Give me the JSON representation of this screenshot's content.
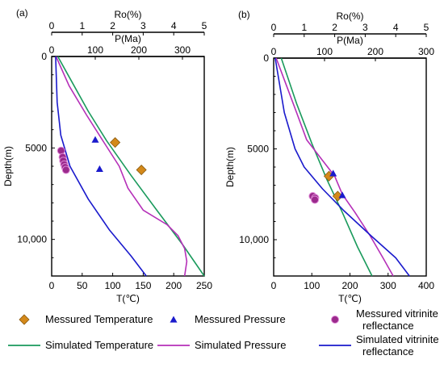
{
  "chart_data": [
    {
      "type": "line",
      "panel_label": "(a)",
      "axes": {
        "temperature": {
          "label": "T(℃)",
          "range": [
            0,
            250
          ],
          "ticks": [
            0,
            50,
            100,
            150,
            200,
            250
          ],
          "position": "bottom"
        },
        "pressure": {
          "label": "P(Ma)",
          "range": [
            0,
            350
          ],
          "ticks": [
            0,
            100,
            200,
            300
          ],
          "position": "top"
        },
        "ro": {
          "label": "Ro(%)",
          "range": [
            0,
            5
          ],
          "ticks": [
            0,
            1,
            2,
            3,
            4,
            5
          ],
          "position": "top"
        },
        "depth": {
          "label": "Depth(m)",
          "range": [
            0,
            12000
          ],
          "ticks": [
            0,
            5000,
            10000
          ],
          "tick_labels": [
            "0",
            "5000",
            "10,000"
          ],
          "reversed": true,
          "position": "left"
        }
      },
      "series": [
        {
          "name": "Simulated Temperature",
          "axis": "temperature",
          "color": "#1a9a5c",
          "style": "line",
          "points": [
            [
              10,
              0
            ],
            [
              30,
              1200
            ],
            [
              60,
              3000
            ],
            [
              90,
              4600
            ],
            [
              130,
              6500
            ],
            [
              170,
              8300
            ],
            [
              215,
              10300
            ],
            [
              250,
              12000
            ]
          ]
        },
        {
          "name": "Simulated Pressure",
          "axis": "pressure",
          "color": "#b52fb8",
          "style": "line",
          "points": [
            [
              10,
              0
            ],
            [
              40,
              1600
            ],
            [
              80,
              3200
            ],
            [
              120,
              4700
            ],
            [
              155,
              6000
            ],
            [
              175,
              7200
            ],
            [
              210,
              8400
            ],
            [
              265,
              9200
            ],
            [
              290,
              9800
            ],
            [
              305,
              10500
            ],
            [
              310,
              11200
            ],
            [
              305,
              12000
            ]
          ]
        },
        {
          "name": "Simulated vitrinite reflectance",
          "axis": "ro",
          "color": "#1a1acc",
          "style": "line",
          "points": [
            [
              0.13,
              0
            ],
            [
              0.18,
              2500
            ],
            [
              0.3,
              4300
            ],
            [
              0.6,
              6000
            ],
            [
              1.2,
              7800
            ],
            [
              1.9,
              9500
            ],
            [
              2.6,
              10900
            ],
            [
              3.1,
              12000
            ]
          ]
        },
        {
          "name": "Messured Temperature",
          "axis": "temperature",
          "color": "#d4891a",
          "style": "diamond",
          "points": [
            [
              104,
              4700
            ],
            [
              147,
              6200
            ]
          ]
        },
        {
          "name": "Messured Pressure",
          "axis": "pressure",
          "color": "#1a1acc",
          "style": "triangle",
          "points": [
            [
              100,
              4550
            ],
            [
              110,
              6150
            ]
          ]
        },
        {
          "name": "Messured vitrinite reflectance",
          "axis": "ro",
          "color": "#9b2a8c",
          "style": "circle",
          "points": [
            [
              0.31,
              5150
            ],
            [
              0.36,
              5500
            ],
            [
              0.38,
              5700
            ],
            [
              0.41,
              5900
            ],
            [
              0.44,
              6050
            ],
            [
              0.47,
              6200
            ]
          ]
        }
      ]
    },
    {
      "type": "line",
      "panel_label": "(b)",
      "axes": {
        "temperature": {
          "label": "T(℃)",
          "range": [
            0,
            400
          ],
          "ticks": [
            0,
            100,
            200,
            300,
            400
          ],
          "position": "bottom"
        },
        "pressure": {
          "label": "P(Ma)",
          "range": [
            0,
            300
          ],
          "ticks": [
            0,
            100,
            200,
            300
          ],
          "position": "top"
        },
        "ro": {
          "label": "Ro(%)",
          "range": [
            0,
            5
          ],
          "ticks": [
            0,
            1,
            2,
            3,
            4,
            5
          ],
          "position": "top"
        },
        "depth": {
          "label": "Depth(m)",
          "range": [
            0,
            12000
          ],
          "ticks": [
            0,
            5000,
            10000
          ],
          "tick_labels": [
            "0",
            "5000",
            "10,000"
          ],
          "reversed": true,
          "position": "left"
        }
      },
      "series": [
        {
          "name": "Simulated Temperature",
          "axis": "temperature",
          "color": "#1a9a5c",
          "style": "line",
          "points": [
            [
              20,
              0
            ],
            [
              60,
              2500
            ],
            [
              100,
              4700
            ],
            [
              140,
              6700
            ],
            [
              180,
              8500
            ],
            [
              220,
              10400
            ],
            [
              258,
              12000
            ]
          ]
        },
        {
          "name": "Simulated Pressure",
          "axis": "pressure",
          "color": "#b52fb8",
          "style": "line",
          "points": [
            [
              5,
              0
            ],
            [
              25,
              1500
            ],
            [
              45,
              3000
            ],
            [
              65,
              4500
            ],
            [
              95,
              5600
            ],
            [
              120,
              6500
            ],
            [
              135,
              7500
            ],
            [
              160,
              8500
            ],
            [
              190,
              9800
            ],
            [
              215,
              11000
            ],
            [
              235,
              12000
            ]
          ]
        },
        {
          "name": "Simulated vitrinite reflectance",
          "axis": "ro",
          "color": "#1a1acc",
          "style": "line",
          "points": [
            [
              0.05,
              0
            ],
            [
              0.35,
              3000
            ],
            [
              0.7,
              5000
            ],
            [
              1.0,
              6000
            ],
            [
              1.6,
              7200
            ],
            [
              2.3,
              8400
            ],
            [
              3.2,
              9800
            ],
            [
              4.0,
              11000
            ],
            [
              4.45,
              12000
            ]
          ]
        },
        {
          "name": "Messured Temperature",
          "axis": "temperature",
          "color": "#d4891a",
          "style": "diamond",
          "points": [
            [
              145,
              6500
            ],
            [
              168,
              7600
            ]
          ]
        },
        {
          "name": "Messured Pressure",
          "axis": "pressure",
          "color": "#1a1acc",
          "style": "triangle",
          "points": [
            [
              117,
              6350
            ],
            [
              135,
              7550
            ]
          ]
        },
        {
          "name": "Messured vitrinite reflectance",
          "axis": "ro",
          "color": "#9b2a8c",
          "style": "circle",
          "points": [
            [
              1.28,
              7600
            ],
            [
              1.36,
              7700
            ],
            [
              1.35,
              7800
            ]
          ]
        }
      ]
    }
  ],
  "legend": {
    "position": "bottom",
    "items": [
      {
        "label": "Messured Temperature",
        "lines": [
          "Messured Temperature"
        ],
        "marker": "diamond",
        "color": "#d4891a"
      },
      {
        "label": "Messured Pressure",
        "lines": [
          "Messured Pressure"
        ],
        "marker": "triangle",
        "color": "#1a1acc"
      },
      {
        "label": "Messured vitrinite reflectance",
        "lines": [
          "Messured vitrinite",
          "reflectance"
        ],
        "marker": "circle",
        "color": "#9b2a8c"
      },
      {
        "label": "Simulated Temperature",
        "lines": [
          "Simulated Temperature"
        ],
        "marker": "line",
        "color": "#1a9a5c"
      },
      {
        "label": "Simulated Pressure",
        "lines": [
          "Simulated Pressure"
        ],
        "marker": "line",
        "color": "#b52fb8"
      },
      {
        "label": "Simulated vitrinite reflectance",
        "lines": [
          "Simulated vitrinite",
          "reflectance"
        ],
        "marker": "line",
        "color": "#1a1acc"
      }
    ]
  }
}
